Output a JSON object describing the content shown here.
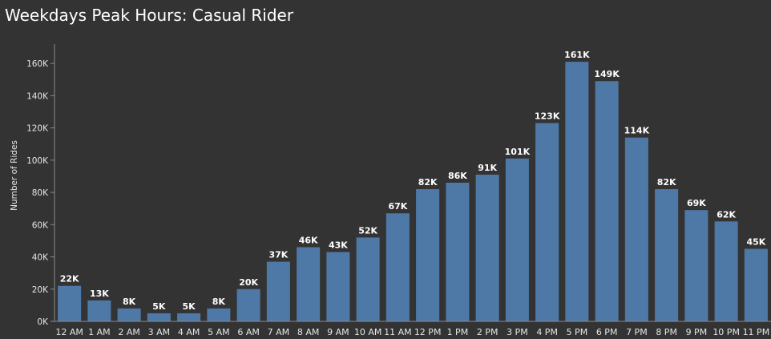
{
  "chart_data": {
    "type": "bar",
    "title": "Weekdays Peak Hours: Casual Rider",
    "xlabel": "",
    "ylabel": "Number of Rides",
    "ylim": [
      0,
      170000
    ],
    "yticks": [
      0,
      20000,
      40000,
      60000,
      80000,
      100000,
      120000,
      140000,
      160000
    ],
    "ytick_labels": [
      "0K",
      "20K",
      "40K",
      "60K",
      "80K",
      "100K",
      "120K",
      "140K",
      "160K"
    ],
    "grid": false,
    "bar_color": "#4e79a7",
    "categories": [
      "12 AM",
      "1 AM",
      "2 AM",
      "3 AM",
      "4 AM",
      "5 AM",
      "6 AM",
      "7 AM",
      "8 AM",
      "9 AM",
      "10 AM",
      "11 AM",
      "12 PM",
      "1 PM",
      "2 PM",
      "3 PM",
      "4 PM",
      "5 PM",
      "6 PM",
      "7 PM",
      "8 PM",
      "9 PM",
      "10 PM",
      "11 PM"
    ],
    "values": [
      22000,
      13000,
      8000,
      5000,
      5000,
      8000,
      20000,
      37000,
      46000,
      43000,
      52000,
      67000,
      82000,
      86000,
      91000,
      101000,
      123000,
      161000,
      149000,
      114000,
      82000,
      69000,
      62000,
      45000
    ],
    "data_labels": [
      "22K",
      "13K",
      "8K",
      "5K",
      "5K",
      "8K",
      "20K",
      "37K",
      "46K",
      "43K",
      "52K",
      "67K",
      "82K",
      "86K",
      "91K",
      "101K",
      "123K",
      "161K",
      "149K",
      "114K",
      "82K",
      "69K",
      "62K",
      "45K"
    ]
  }
}
